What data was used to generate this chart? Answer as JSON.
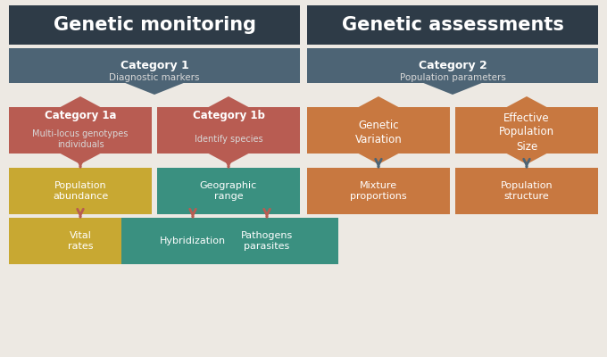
{
  "bg_color": "#ede9e3",
  "header_bg": "#2e3b47",
  "cat1_bg": "#4d6475",
  "cat1a_bg": "#b85c52",
  "cat1b_bg": "#b85c52",
  "cat2_bg": "#4d6475",
  "gv_bg": "#c87840",
  "eps_bg": "#c87840",
  "mix_bg": "#c87840",
  "ps_bg": "#c87840",
  "pa_bg": "#c8a832",
  "gr_bg": "#3a9080",
  "vr_bg": "#c8a832",
  "hyb_bg": "#3a9080",
  "path_bg": "#3a9080",
  "text_white": "#ffffff",
  "text_light": "#d8d8d8",
  "arrow_red": "#b85c52",
  "arrow_blue": "#4d6475",
  "h1_text": "Genetic monitoring",
  "h2_text": "Genetic assessments",
  "cat1_title": "Category 1",
  "cat1_sub": "Diagnostic markers",
  "cat2_title": "Category 2",
  "cat2_sub": "Population parameters",
  "cat1a_title": "Category 1a",
  "cat1a_sub": "Multi-locus genotypes\nindividuals",
  "cat1b_title": "Category 1b",
  "cat1b_sub": "Identify species",
  "gv_text": "Genetic\nVariation",
  "eps_text": "Effective\nPopulation\nSize",
  "mix_text": "Mixture\nproportions",
  "ps_text": "Population\nstructure",
  "pa_text": "Population\nabundance",
  "gr_text": "Geographic\nrange",
  "vr_text": "Vital\nrates",
  "hyb_text": "Hybridization",
  "path_text": "Pathogens\nparasites"
}
